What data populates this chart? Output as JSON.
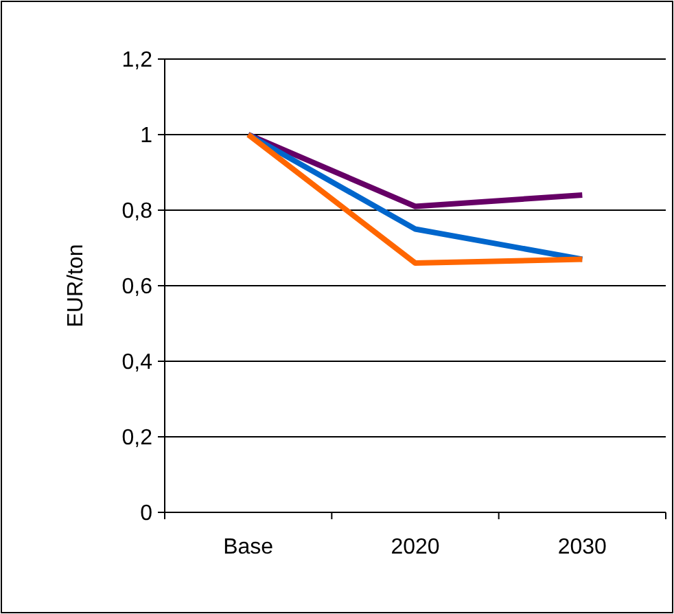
{
  "chart_data": {
    "type": "line",
    "ylabel": "EUR/ton",
    "categories": [
      "Base",
      "2020",
      "2030"
    ],
    "series": [
      {
        "color": "#660066",
        "values": [
          1,
          0.81,
          0.84
        ]
      },
      {
        "color": "#0066cc",
        "values": [
          1,
          0.75,
          0.67
        ]
      },
      {
        "color": "#ff6600",
        "values": [
          1,
          0.66,
          0.67
        ]
      }
    ],
    "ylim": [
      0,
      1.2
    ],
    "yticks": [
      0,
      {
        "value": 0.2,
        "label": "0,2"
      },
      {
        "value": 0.4,
        "label": "0,4"
      },
      {
        "value": 0.6,
        "label": "0,6"
      },
      {
        "value": 0.8,
        "label": "0,8"
      },
      1,
      {
        "value": 1.2,
        "label": "1,2"
      }
    ],
    "grid": "y",
    "marker": "none",
    "line_style": "solid"
  }
}
